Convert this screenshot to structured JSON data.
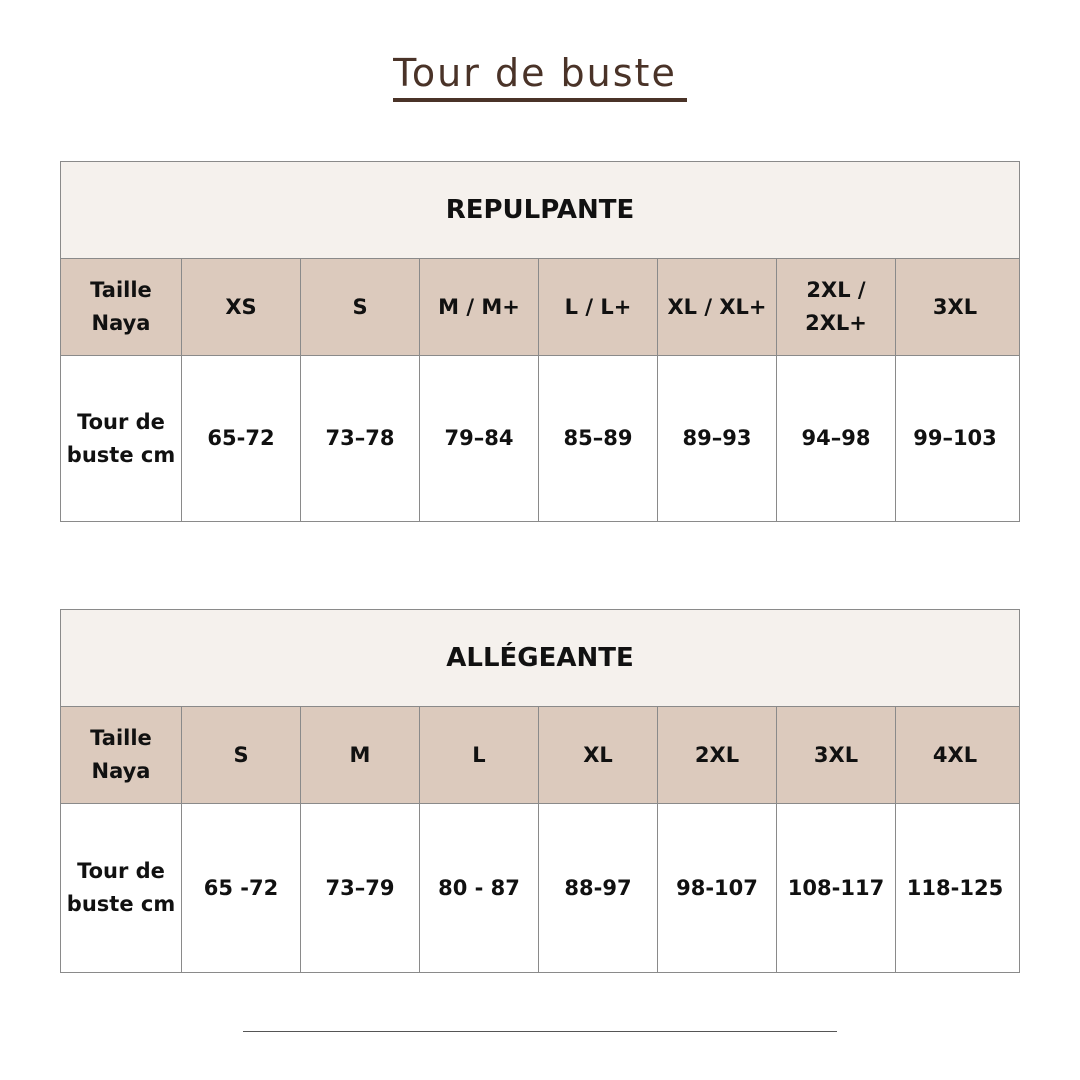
{
  "title": "Tour de buste",
  "tables": [
    {
      "name": "REPULPANTE",
      "header": [
        "Taille Naya",
        "XS",
        "S",
        "M / M+",
        "L / L+",
        "XL / XL+",
        "2XL / 2XL+",
        "3XL"
      ],
      "row": [
        "Tour de buste cm",
        "65-72",
        "73–78",
        "79–84",
        "85–89",
        "89–93",
        "94–98",
        "99–103"
      ]
    },
    {
      "name": "ALLÉGEANTE",
      "header": [
        "Taille Naya",
        "S",
        "M",
        "L",
        "XL",
        "2XL",
        "3XL",
        "4XL"
      ],
      "row": [
        "Tour de buste cm",
        "65 -72",
        "73–79",
        "80 - 87",
        "88-97",
        "98-107",
        "108-117",
        "118-125"
      ]
    }
  ],
  "colors": {
    "title": "#4a3328",
    "table_title_bg": "#f5f1ed",
    "header_bg": "#dccabd"
  }
}
